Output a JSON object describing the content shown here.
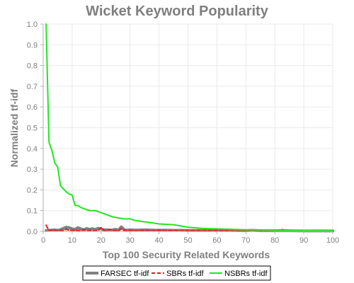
{
  "chart_data": {
    "type": "line",
    "title": "Wicket Keyword Popularity",
    "xlabel": "Top 100 Security Related Keywords",
    "ylabel": "Normalized tf-idf",
    "xlim": [
      0,
      100
    ],
    "ylim": [
      0,
      1.0
    ],
    "xticks": [
      0,
      10,
      20,
      30,
      40,
      50,
      60,
      70,
      80,
      90,
      100
    ],
    "yticks": [
      "0.0",
      "0.1",
      "0.2",
      "0.3",
      "0.4",
      "0.5",
      "0.6",
      "0.7",
      "0.8",
      "0.9",
      "1.0"
    ],
    "grid": true,
    "legend_position": "bottom",
    "series": [
      {
        "name": "FARSEC tf-idf",
        "color": "#808080",
        "style": "solid-thick",
        "x": [
          1,
          2,
          3,
          4,
          5,
          6,
          7,
          8,
          9,
          10,
          11,
          12,
          13,
          14,
          15,
          16,
          17,
          18,
          19,
          20,
          21,
          22,
          23,
          24,
          25,
          26,
          27,
          28,
          29,
          30,
          32,
          35,
          38,
          40,
          42,
          45,
          48,
          50,
          55,
          60,
          65,
          70,
          72,
          75,
          80,
          85,
          90,
          95,
          100
        ],
        "y": [
          0.004,
          0.005,
          0.006,
          0.007,
          0.005,
          0.008,
          0.015,
          0.02,
          0.018,
          0.012,
          0.01,
          0.018,
          0.012,
          0.008,
          0.014,
          0.01,
          0.013,
          0.009,
          0.015,
          0.012,
          0.007,
          0.008,
          0.005,
          0.007,
          0.01,
          0.006,
          0.022,
          0.008,
          0.006,
          0.007,
          0.006,
          0.007,
          0.006,
          0.005,
          0.006,
          0.005,
          0.005,
          0.004,
          0.004,
          0.004,
          0.004,
          0.003,
          0.005,
          0.003,
          0.003,
          0.003,
          0.002,
          0.002,
          0.002
        ]
      },
      {
        "name": "SBRs tf-idf",
        "color": "#e31a1c",
        "style": "dashed",
        "x": [
          1,
          2,
          3,
          4,
          5,
          6,
          7,
          8,
          9,
          10,
          11,
          12,
          13,
          14,
          15,
          16,
          17,
          18,
          19,
          20,
          21,
          22,
          23,
          24,
          25,
          26,
          27,
          28,
          29,
          30,
          32,
          35,
          38,
          40,
          42,
          45,
          48,
          50,
          55,
          60,
          65,
          70,
          72,
          75,
          80,
          82,
          85,
          90,
          95,
          100
        ],
        "y": [
          0.03,
          0.004,
          0.006,
          0.004,
          0.003,
          0.005,
          0.004,
          0.01,
          0.006,
          0.005,
          0.004,
          0.005,
          0.004,
          0.008,
          0.004,
          0.005,
          0.004,
          0.003,
          0.004,
          0.018,
          0.005,
          0.004,
          0.01,
          0.003,
          0.004,
          0.003,
          0.012,
          0.004,
          0.003,
          0.004,
          0.003,
          0.004,
          0.003,
          0.006,
          0.003,
          0.004,
          0.003,
          0.004,
          0.003,
          0.005,
          0.003,
          0.003,
          0.002,
          0.003,
          0.002,
          0.009,
          0.004,
          0.002,
          0.002,
          0.001
        ]
      },
      {
        "name": "NSBRs tf-idf",
        "color": "#22e622",
        "style": "solid",
        "x": [
          1,
          2,
          3,
          4,
          5,
          6,
          7,
          8,
          9,
          10,
          11,
          12,
          13,
          14,
          15,
          16,
          17,
          18,
          19,
          20,
          22,
          24,
          26,
          28,
          30,
          32,
          34,
          36,
          38,
          40,
          45,
          50,
          55,
          60,
          65,
          70,
          75,
          80,
          85,
          90,
          95,
          100
        ],
        "y": [
          1.0,
          0.43,
          0.39,
          0.33,
          0.31,
          0.22,
          0.205,
          0.19,
          0.18,
          0.175,
          0.125,
          0.125,
          0.115,
          0.11,
          0.105,
          0.1,
          0.1,
          0.1,
          0.095,
          0.09,
          0.08,
          0.07,
          0.065,
          0.06,
          0.06,
          0.052,
          0.048,
          0.044,
          0.04,
          0.036,
          0.032,
          0.02,
          0.014,
          0.012,
          0.01,
          0.008,
          0.007,
          0.006,
          0.005,
          0.005,
          0.004,
          0.003
        ]
      }
    ]
  }
}
